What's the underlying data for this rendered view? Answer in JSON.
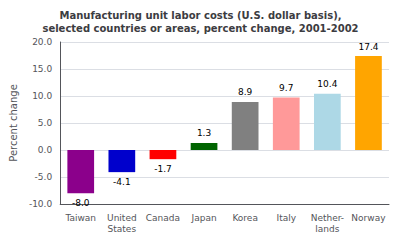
{
  "chart_data": {
    "type": "bar",
    "title": "Manufacturing unit labor costs (U.S. dollar basis),\nselected countries or areas, percent change, 2001-2002",
    "categories": [
      "Taiwan",
      "United\nStates",
      "Canada",
      "Japan",
      "Korea",
      "Italy",
      "Nether-\nlands",
      "Norway"
    ],
    "values": [
      -8.0,
      -4.1,
      -1.7,
      1.3,
      8.9,
      9.7,
      10.4,
      17.4
    ],
    "value_labels": [
      "-8.0",
      "-4.1",
      "-1.7",
      "1.3",
      "8.9",
      "9.7",
      "10.4",
      "17.4"
    ],
    "colors": [
      "#8B008B",
      "#0000CC",
      "#FF0000",
      "#006400",
      "#808080",
      "#FF9999",
      "#ADD8E6",
      "#FFA500"
    ],
    "ylabel": "Percent change",
    "ylim": [
      -10.0,
      20.0
    ],
    "yticks": [
      {
        "value": -10.0,
        "label": "-10.0"
      },
      {
        "value": -5.0,
        "label": "-5.0"
      },
      {
        "value": 0.0,
        "label": "0.0"
      },
      {
        "value": 5.0,
        "label": "5.0"
      },
      {
        "value": 10.0,
        "label": "10.0"
      },
      {
        "value": 15.0,
        "label": "15.0"
      },
      {
        "value": 20.0,
        "label": "20.0"
      }
    ],
    "grid": true,
    "data_labels": true
  }
}
